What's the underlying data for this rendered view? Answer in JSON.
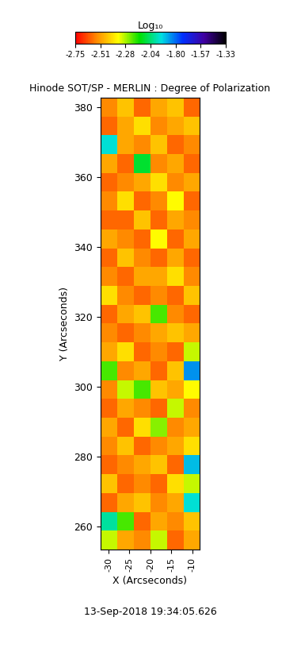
{
  "chart_data": {
    "type": "heatmap",
    "title": "Hinode SOT/SP - MERLIN : Degree of Polarization",
    "xlabel": "X (Arcseconds)",
    "ylabel": "Y (Arcseconds)",
    "xlim": [
      -31.9,
      -8.3
    ],
    "xticks": [
      -30,
      -25,
      -20,
      -15,
      -10
    ],
    "ylim": [
      253.4,
      382.7
    ],
    "yticks": [
      260,
      280,
      300,
      320,
      340,
      360,
      380
    ],
    "cells": [
      [
        -2.55,
        -2.45,
        -2.6,
        -2.5,
        -2.45,
        -2.6
      ],
      [
        -2.6,
        -2.5,
        -2.4,
        -2.55,
        -2.5,
        -2.45
      ],
      [
        -1.95,
        -2.5,
        -2.55,
        -2.45,
        -2.6,
        -2.55
      ],
      [
        -2.5,
        -2.6,
        -2.1,
        -2.55,
        -2.5,
        -2.6
      ],
      [
        -2.6,
        -2.55,
        -2.5,
        -2.4,
        -2.55,
        -2.5
      ],
      [
        -2.55,
        -2.4,
        -2.6,
        -2.55,
        -2.35,
        -2.6
      ],
      [
        -2.6,
        -2.6,
        -2.45,
        -2.6,
        -2.5,
        -2.55
      ],
      [
        -2.5,
        -2.55,
        -2.6,
        -2.35,
        -2.6,
        -2.5
      ],
      [
        -2.6,
        -2.45,
        -2.55,
        -2.6,
        -2.5,
        -2.6
      ],
      [
        -2.55,
        -2.6,
        -2.5,
        -2.5,
        -2.4,
        -2.55
      ],
      [
        -2.4,
        -2.55,
        -2.6,
        -2.55,
        -2.6,
        -2.45
      ],
      [
        -2.6,
        -2.5,
        -2.45,
        -2.2,
        -2.55,
        -2.6
      ],
      [
        -2.55,
        -2.6,
        -2.55,
        -2.5,
        -2.45,
        -2.5
      ],
      [
        -2.5,
        -2.4,
        -2.6,
        -2.55,
        -2.6,
        -2.3
      ],
      [
        -2.2,
        -2.55,
        -2.5,
        -2.6,
        -2.45,
        -1.85
      ],
      [
        -2.55,
        -2.3,
        -2.2,
        -2.45,
        -2.5,
        -2.35
      ],
      [
        -2.6,
        -2.5,
        -2.55,
        -2.6,
        -2.3,
        -2.55
      ],
      [
        -2.5,
        -2.6,
        -2.4,
        -2.25,
        -2.55,
        -2.5
      ],
      [
        -2.55,
        -2.45,
        -2.6,
        -2.55,
        -2.5,
        -2.4
      ],
      [
        -2.6,
        -2.55,
        -2.5,
        -2.45,
        -2.6,
        -1.9
      ],
      [
        -2.45,
        -2.6,
        -2.55,
        -2.6,
        -2.4,
        -2.3
      ],
      [
        -2.6,
        -2.5,
        -2.45,
        -2.55,
        -2.5,
        -1.95
      ],
      [
        -2.0,
        -2.2,
        -2.6,
        -2.5,
        -2.55,
        -2.45
      ],
      [
        -2.3,
        -2.5,
        -2.55,
        -2.3,
        -2.6,
        -2.5
      ]
    ],
    "colorbar_label": "Log₁₀",
    "colorbar_range": [
      -2.75,
      -1.33
    ],
    "colorbar_ticks": [
      -2.75,
      -2.51,
      -2.28,
      -2.04,
      {
        "value": -1.8,
        "label": "-1.80"
      },
      -1.57,
      -1.33
    ],
    "annotations": [
      "13-Sep-2018 19:34:05.626"
    ]
  }
}
